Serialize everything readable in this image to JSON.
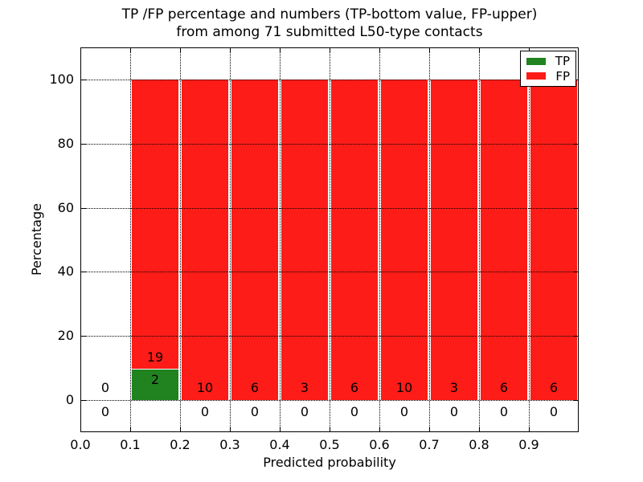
{
  "figure": {
    "title_line1": "TP /FP percentage and numbers (TP-bottom value, FP-upper)",
    "title_line2": "from among 71 submitted L50-type contacts"
  },
  "chart_data": {
    "type": "bar",
    "stacked": true,
    "title": "TP /FP percentage and numbers (TP-bottom value, FP-upper)\nfrom among 71 submitted L50-type contacts",
    "xlabel": "Predicted probability",
    "ylabel": "Percentage",
    "xlim": [
      0.0,
      1.0
    ],
    "ylim": [
      -10,
      110
    ],
    "grid": true,
    "xticks": {
      "values": [
        0.0,
        0.1,
        0.2,
        0.3,
        0.4,
        0.5,
        0.6,
        0.7,
        0.8,
        0.9
      ],
      "labels": [
        "0.0",
        "0.1",
        "0.2",
        "0.3",
        "0.4",
        "0.5",
        "0.6",
        "0.7",
        "0.8",
        "0.9"
      ]
    },
    "yticks": {
      "values": [
        0,
        20,
        40,
        60,
        80,
        100
      ],
      "labels": [
        "0",
        "20",
        "40",
        "60",
        "80",
        "100"
      ]
    },
    "bin_edges": [
      0.0,
      0.1,
      0.2,
      0.3,
      0.4,
      0.5,
      0.6,
      0.7,
      0.8,
      0.9,
      1.0
    ],
    "total_contacts": 71,
    "series": [
      {
        "name": "TP",
        "color": "#218220",
        "counts": [
          0,
          2,
          0,
          0,
          0,
          0,
          0,
          0,
          0,
          0
        ]
      },
      {
        "name": "FP",
        "color": "#fd1c17",
        "counts": [
          0,
          19,
          10,
          6,
          3,
          6,
          10,
          3,
          6,
          6
        ]
      }
    ],
    "percent_mode": "per-bin: each bin's TP+FP stack to 100%; bar height = count share of bin total",
    "legend": {
      "position": "upper right",
      "entries": [
        "TP",
        "FP"
      ]
    }
  }
}
